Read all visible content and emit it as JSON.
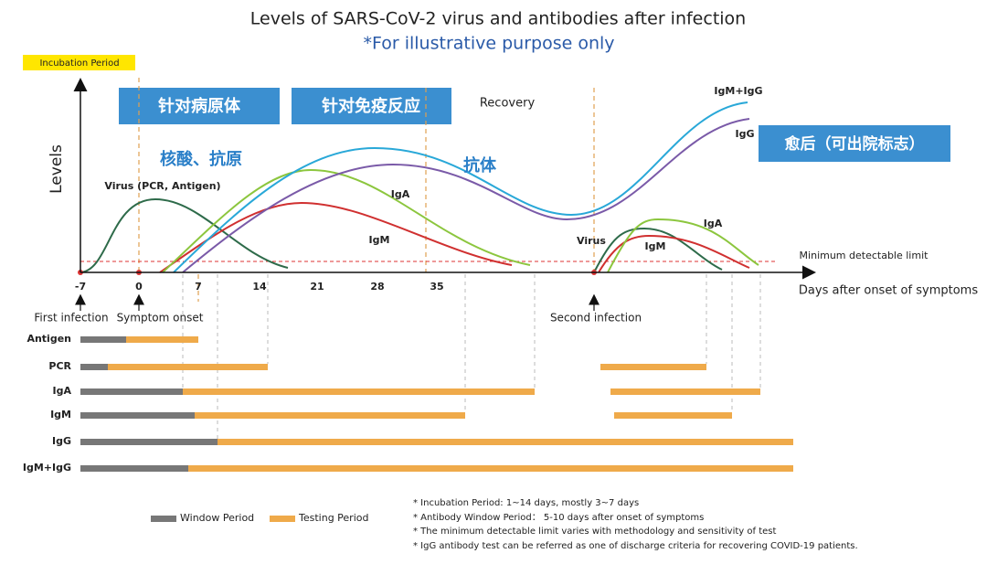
{
  "header": {
    "title": "Levels of SARS-CoV-2 virus and antibodies after infection",
    "subtitle": "*For illustrative purpose only"
  },
  "tag": "Incubation Period",
  "boxes": [
    "针对病原体",
    "针对免疫反应",
    "愈后（可出院标志）"
  ],
  "annotations": {
    "recovery": "Recovery",
    "nucleic": "核酸、抗原",
    "antibody": "抗体",
    "virus1": "Virus (PCR, Antigen)",
    "iga1": "IgA",
    "igm1": "IgM",
    "igmigg": "IgM+IgG",
    "igg": "IgG",
    "virus2": "Virus",
    "igm2": "IgM",
    "iga2": "IgA",
    "limit": "Minimum detectable limit"
  },
  "axes": {
    "y_label": "Levels",
    "x_label": "Days after onset of symptoms",
    "x_ticks": [
      "-7",
      "0",
      "7",
      "14",
      "21",
      "28",
      "35"
    ]
  },
  "events": [
    "First infection",
    "Symptom onset",
    "Second infection"
  ],
  "rows": [
    "Antigen",
    "PCR",
    "IgA",
    "IgM",
    "IgG",
    "IgM+IgG"
  ],
  "legend": [
    "Window Period",
    "Testing Period"
  ],
  "notes": [
    "* Incubation Period: 1~14 days, mostly 3~7 days",
    "* Antibody Window Period： 5-10 days after onset of symptoms",
    "* The minimum detectable limit varies with methodology and sensitivity of test",
    "* IgG antibody test can be referred as one of discharge criteria for recovering COVID-19 patients."
  ]
}
